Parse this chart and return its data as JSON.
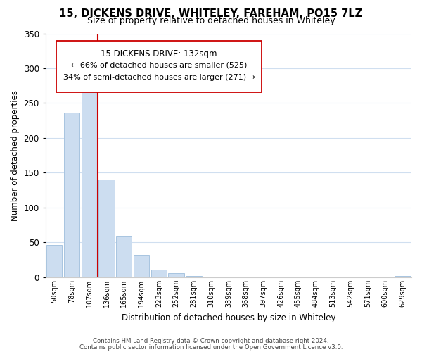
{
  "title": "15, DICKENS DRIVE, WHITELEY, FAREHAM, PO15 7LZ",
  "subtitle": "Size of property relative to detached houses in Whiteley",
  "xlabel": "Distribution of detached houses by size in Whiteley",
  "ylabel": "Number of detached properties",
  "bar_labels": [
    "50sqm",
    "78sqm",
    "107sqm",
    "136sqm",
    "165sqm",
    "194sqm",
    "223sqm",
    "252sqm",
    "281sqm",
    "310sqm",
    "339sqm",
    "368sqm",
    "397sqm",
    "426sqm",
    "455sqm",
    "484sqm",
    "513sqm",
    "542sqm",
    "571sqm",
    "600sqm",
    "629sqm"
  ],
  "bar_values": [
    46,
    236,
    270,
    140,
    60,
    32,
    11,
    6,
    2,
    0,
    0,
    0,
    0,
    0,
    0,
    0,
    0,
    0,
    0,
    0,
    2
  ],
  "bar_color": "#ccddf0",
  "bar_edge_color": "#a8c4e0",
  "vline_x_idx": 2.5,
  "vline_color": "#cc0000",
  "ylim": [
    0,
    350
  ],
  "yticks": [
    0,
    50,
    100,
    150,
    200,
    250,
    300,
    350
  ],
  "annotation_title": "15 DICKENS DRIVE: 132sqm",
  "annotation_line1": "← 66% of detached houses are smaller (525)",
  "annotation_line2": "34% of semi-detached houses are larger (271) →",
  "footer1": "Contains HM Land Registry data © Crown copyright and database right 2024.",
  "footer2": "Contains public sector information licensed under the Open Government Licence v3.0.",
  "background_color": "#ffffff",
  "grid_color": "#d0dff0"
}
